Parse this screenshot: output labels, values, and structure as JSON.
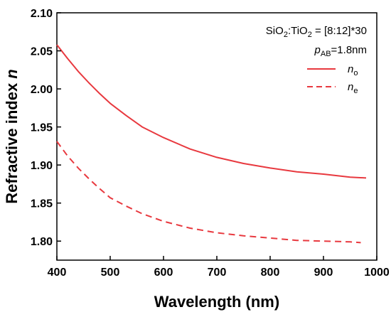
{
  "chart_data": {
    "type": "line",
    "xlabel": "Wavelength (nm)",
    "ylabel_main": "Refractive index ",
    "ylabel_symbol": "n",
    "xlim": [
      400,
      1000
    ],
    "ylim": [
      1.775,
      2.1
    ],
    "x_ticks": [
      400,
      500,
      600,
      700,
      800,
      900,
      1000
    ],
    "y_ticks": [
      "1.80",
      "1.85",
      "1.90",
      "1.95",
      "2.00",
      "2.05",
      "2.10"
    ],
    "grid": false,
    "legend_position": "top-right",
    "annotation": {
      "line1_a": "SiO",
      "line1_sub1": "2",
      "line1_b": ":TiO",
      "line1_sub2": "2",
      "line1_c": " = [8:12]*30",
      "line2_symbol": "p",
      "line2_sub": "AB",
      "line2_value": "=1.8nm"
    },
    "color": "#e8393f",
    "series": [
      {
        "name_symbol": "n",
        "name_sub": "o",
        "style": "solid",
        "x": [
          400,
          420,
          440,
          460,
          480,
          500,
          530,
          560,
          600,
          650,
          700,
          750,
          800,
          850,
          900,
          950,
          980
        ],
        "values": [
          2.058,
          2.04,
          2.023,
          2.008,
          1.994,
          1.981,
          1.965,
          1.95,
          1.936,
          1.921,
          1.91,
          1.902,
          1.896,
          1.891,
          1.888,
          1.884,
          1.883
        ]
      },
      {
        "name_symbol": "n",
        "name_sub": "e",
        "style": "dashed",
        "x": [
          400,
          420,
          440,
          460,
          480,
          500,
          530,
          560,
          600,
          650,
          700,
          750,
          800,
          850,
          900,
          950,
          970
        ],
        "values": [
          1.931,
          1.912,
          1.896,
          1.882,
          1.869,
          1.857,
          1.846,
          1.836,
          1.826,
          1.817,
          1.811,
          1.807,
          1.804,
          1.801,
          1.8,
          1.799,
          1.798
        ]
      }
    ]
  }
}
